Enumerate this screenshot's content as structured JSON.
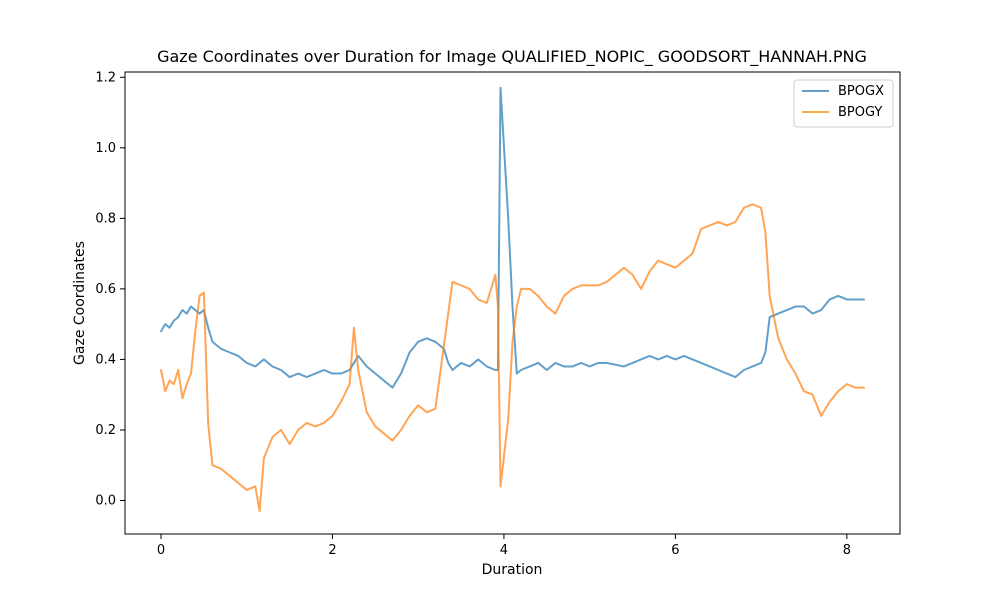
{
  "chart_data": {
    "type": "line",
    "title": "Gaze Coordinates over Duration for Image QUALIFIED_NOPIC_ GOODSORT_HANNAH.PNG",
    "xlabel": "Duration",
    "ylabel": "Gaze Coordinates",
    "xlim": [
      -0.42,
      8.62
    ],
    "ylim": [
      -0.095,
      1.215
    ],
    "xticks": [
      0,
      2,
      4,
      6,
      8
    ],
    "yticks": [
      0.0,
      0.2,
      0.4,
      0.6,
      0.8,
      1.0,
      1.2
    ],
    "xtick_labels": [
      "0",
      "2",
      "4",
      "6",
      "8"
    ],
    "ytick_labels": [
      "0.0",
      "0.2",
      "0.4",
      "0.6",
      "0.8",
      "1.0",
      "1.2"
    ],
    "grid": false,
    "legend_position": "top-right",
    "series": [
      {
        "name": "BPOGX",
        "color": "#1f77b4",
        "alpha": 0.7,
        "points": [
          [
            0.0,
            0.48
          ],
          [
            0.05,
            0.5
          ],
          [
            0.1,
            0.49
          ],
          [
            0.15,
            0.51
          ],
          [
            0.2,
            0.52
          ],
          [
            0.25,
            0.54
          ],
          [
            0.3,
            0.53
          ],
          [
            0.35,
            0.55
          ],
          [
            0.4,
            0.54
          ],
          [
            0.45,
            0.53
          ],
          [
            0.5,
            0.54
          ],
          [
            0.55,
            0.49
          ],
          [
            0.6,
            0.45
          ],
          [
            0.7,
            0.43
          ],
          [
            0.8,
            0.42
          ],
          [
            0.9,
            0.41
          ],
          [
            1.0,
            0.39
          ],
          [
            1.1,
            0.38
          ],
          [
            1.2,
            0.4
          ],
          [
            1.3,
            0.38
          ],
          [
            1.4,
            0.37
          ],
          [
            1.5,
            0.35
          ],
          [
            1.6,
            0.36
          ],
          [
            1.7,
            0.35
          ],
          [
            1.8,
            0.36
          ],
          [
            1.9,
            0.37
          ],
          [
            2.0,
            0.36
          ],
          [
            2.1,
            0.36
          ],
          [
            2.2,
            0.37
          ],
          [
            2.25,
            0.39
          ],
          [
            2.3,
            0.41
          ],
          [
            2.4,
            0.38
          ],
          [
            2.5,
            0.36
          ],
          [
            2.6,
            0.34
          ],
          [
            2.7,
            0.32
          ],
          [
            2.8,
            0.36
          ],
          [
            2.9,
            0.42
          ],
          [
            3.0,
            0.45
          ],
          [
            3.1,
            0.46
          ],
          [
            3.2,
            0.45
          ],
          [
            3.3,
            0.43
          ],
          [
            3.35,
            0.39
          ],
          [
            3.4,
            0.37
          ],
          [
            3.5,
            0.39
          ],
          [
            3.6,
            0.38
          ],
          [
            3.7,
            0.4
          ],
          [
            3.8,
            0.38
          ],
          [
            3.9,
            0.37
          ],
          [
            3.93,
            0.37
          ],
          [
            3.96,
            1.17
          ],
          [
            4.05,
            0.8
          ],
          [
            4.1,
            0.55
          ],
          [
            4.15,
            0.36
          ],
          [
            4.2,
            0.37
          ],
          [
            4.3,
            0.38
          ],
          [
            4.4,
            0.39
          ],
          [
            4.5,
            0.37
          ],
          [
            4.6,
            0.39
          ],
          [
            4.7,
            0.38
          ],
          [
            4.8,
            0.38
          ],
          [
            4.9,
            0.39
          ],
          [
            5.0,
            0.38
          ],
          [
            5.1,
            0.39
          ],
          [
            5.2,
            0.39
          ],
          [
            5.4,
            0.38
          ],
          [
            5.5,
            0.39
          ],
          [
            5.6,
            0.4
          ],
          [
            5.7,
            0.41
          ],
          [
            5.8,
            0.4
          ],
          [
            5.9,
            0.41
          ],
          [
            6.0,
            0.4
          ],
          [
            6.1,
            0.41
          ],
          [
            6.2,
            0.4
          ],
          [
            6.3,
            0.39
          ],
          [
            6.4,
            0.38
          ],
          [
            6.5,
            0.37
          ],
          [
            6.6,
            0.36
          ],
          [
            6.7,
            0.35
          ],
          [
            6.8,
            0.37
          ],
          [
            6.9,
            0.38
          ],
          [
            7.0,
            0.39
          ],
          [
            7.05,
            0.42
          ],
          [
            7.1,
            0.52
          ],
          [
            7.2,
            0.53
          ],
          [
            7.3,
            0.54
          ],
          [
            7.4,
            0.55
          ],
          [
            7.5,
            0.55
          ],
          [
            7.6,
            0.53
          ],
          [
            7.7,
            0.54
          ],
          [
            7.8,
            0.57
          ],
          [
            7.9,
            0.58
          ],
          [
            8.0,
            0.57
          ],
          [
            8.1,
            0.57
          ],
          [
            8.2,
            0.57
          ]
        ]
      },
      {
        "name": "BPOGY",
        "color": "#ff7f0e",
        "alpha": 0.7,
        "points": [
          [
            0.0,
            0.37
          ],
          [
            0.05,
            0.31
          ],
          [
            0.1,
            0.34
          ],
          [
            0.15,
            0.33
          ],
          [
            0.2,
            0.37
          ],
          [
            0.25,
            0.29
          ],
          [
            0.3,
            0.33
          ],
          [
            0.35,
            0.36
          ],
          [
            0.4,
            0.48
          ],
          [
            0.45,
            0.58
          ],
          [
            0.5,
            0.59
          ],
          [
            0.55,
            0.22
          ],
          [
            0.6,
            0.1
          ],
          [
            0.7,
            0.09
          ],
          [
            0.8,
            0.07
          ],
          [
            0.9,
            0.05
          ],
          [
            1.0,
            0.03
          ],
          [
            1.1,
            0.04
          ],
          [
            1.15,
            -0.03
          ],
          [
            1.2,
            0.12
          ],
          [
            1.3,
            0.18
          ],
          [
            1.4,
            0.2
          ],
          [
            1.5,
            0.16
          ],
          [
            1.6,
            0.2
          ],
          [
            1.7,
            0.22
          ],
          [
            1.8,
            0.21
          ],
          [
            1.9,
            0.22
          ],
          [
            2.0,
            0.24
          ],
          [
            2.1,
            0.28
          ],
          [
            2.2,
            0.33
          ],
          [
            2.25,
            0.49
          ],
          [
            2.3,
            0.37
          ],
          [
            2.4,
            0.25
          ],
          [
            2.5,
            0.21
          ],
          [
            2.6,
            0.19
          ],
          [
            2.7,
            0.17
          ],
          [
            2.8,
            0.2
          ],
          [
            2.9,
            0.24
          ],
          [
            3.0,
            0.27
          ],
          [
            3.1,
            0.25
          ],
          [
            3.2,
            0.26
          ],
          [
            3.3,
            0.44
          ],
          [
            3.4,
            0.62
          ],
          [
            3.5,
            0.61
          ],
          [
            3.6,
            0.6
          ],
          [
            3.7,
            0.57
          ],
          [
            3.8,
            0.56
          ],
          [
            3.9,
            0.64
          ],
          [
            3.93,
            0.55
          ],
          [
            3.96,
            0.04
          ],
          [
            4.05,
            0.23
          ],
          [
            4.1,
            0.45
          ],
          [
            4.15,
            0.55
          ],
          [
            4.2,
            0.6
          ],
          [
            4.3,
            0.6
          ],
          [
            4.4,
            0.58
          ],
          [
            4.5,
            0.55
          ],
          [
            4.6,
            0.53
          ],
          [
            4.7,
            0.58
          ],
          [
            4.8,
            0.6
          ],
          [
            4.9,
            0.61
          ],
          [
            5.0,
            0.61
          ],
          [
            5.1,
            0.61
          ],
          [
            5.2,
            0.62
          ],
          [
            5.3,
            0.64
          ],
          [
            5.4,
            0.66
          ],
          [
            5.5,
            0.64
          ],
          [
            5.6,
            0.6
          ],
          [
            5.7,
            0.65
          ],
          [
            5.8,
            0.68
          ],
          [
            5.9,
            0.67
          ],
          [
            6.0,
            0.66
          ],
          [
            6.1,
            0.68
          ],
          [
            6.2,
            0.7
          ],
          [
            6.3,
            0.77
          ],
          [
            6.4,
            0.78
          ],
          [
            6.5,
            0.79
          ],
          [
            6.6,
            0.78
          ],
          [
            6.7,
            0.79
          ],
          [
            6.8,
            0.83
          ],
          [
            6.9,
            0.84
          ],
          [
            7.0,
            0.83
          ],
          [
            7.05,
            0.76
          ],
          [
            7.1,
            0.58
          ],
          [
            7.2,
            0.46
          ],
          [
            7.3,
            0.4
          ],
          [
            7.4,
            0.36
          ],
          [
            7.5,
            0.31
          ],
          [
            7.6,
            0.3
          ],
          [
            7.7,
            0.24
          ],
          [
            7.8,
            0.28
          ],
          [
            7.9,
            0.31
          ],
          [
            8.0,
            0.33
          ],
          [
            8.1,
            0.32
          ],
          [
            8.2,
            0.32
          ]
        ]
      }
    ]
  }
}
